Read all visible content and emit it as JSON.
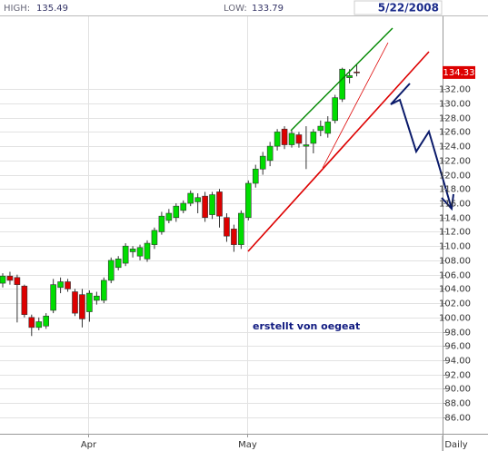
{
  "chart_data": {
    "type": "candlestick",
    "header": {
      "high_label": "HIGH:",
      "high": 135.49,
      "low_label": "LOW:",
      "low": 133.79,
      "date": "5/22/2008"
    },
    "annotation": "erstellt von oegeat",
    "period": "Daily",
    "categories": [
      null,
      null,
      null,
      null,
      null,
      null,
      null,
      null,
      null,
      null,
      null,
      null,
      "Apr",
      null,
      null,
      null,
      null,
      null,
      null,
      null,
      null,
      null,
      null,
      null,
      null,
      null,
      null,
      null,
      null,
      null,
      null,
      null,
      null,
      null,
      "May",
      null,
      null,
      null,
      null,
      null,
      null,
      null,
      null,
      null,
      null,
      null,
      null,
      null,
      null,
      null
    ],
    "series": [
      {
        "up_color": "#00dd00",
        "down_color": "#dd0000",
        "open": [
          104.8,
          105.8,
          105.6,
          104.4,
          100.0,
          98.6,
          98.8,
          101.0,
          104.2,
          105.0,
          103.6,
          103.2,
          100.8,
          102.4,
          102.4,
          105.2,
          107.0,
          107.6,
          109.2,
          108.6,
          108.2,
          110.2,
          112.0,
          113.6,
          114.0,
          115.0,
          116.0,
          116.2,
          117.0,
          114.4,
          117.6,
          114.0,
          112.4,
          110.2,
          114.0,
          118.8,
          120.8,
          122.0,
          124.0,
          126.4,
          124.2,
          125.6,
          124.0,
          124.4,
          126.2,
          125.8,
          127.6,
          130.6,
          133.6,
          134.4
        ],
        "high": [
          106.2,
          106.4,
          106.0,
          104.6,
          100.4,
          100.0,
          100.6,
          105.4,
          105.6,
          105.4,
          104.0,
          104.0,
          103.8,
          103.6,
          105.6,
          108.4,
          108.6,
          110.4,
          110.0,
          110.2,
          110.8,
          112.6,
          114.8,
          115.2,
          116.0,
          116.4,
          117.8,
          117.4,
          117.6,
          117.6,
          118.0,
          114.6,
          113.0,
          115.0,
          119.2,
          121.4,
          123.2,
          124.6,
          126.4,
          126.8,
          126.2,
          126.0,
          126.8,
          126.4,
          127.6,
          128.2,
          131.2,
          135.0,
          134.8,
          135.49
        ],
        "low": [
          104.2,
          104.6,
          99.3,
          100.0,
          97.4,
          98.2,
          98.4,
          100.6,
          103.4,
          103.6,
          100.2,
          98.6,
          99.4,
          101.8,
          102.0,
          104.8,
          106.6,
          107.2,
          108.4,
          108.0,
          107.8,
          109.6,
          111.6,
          113.2,
          113.4,
          114.6,
          115.6,
          114.6,
          113.4,
          113.8,
          112.6,
          110.6,
          109.2,
          109.6,
          113.6,
          118.2,
          120.0,
          121.2,
          123.4,
          123.6,
          123.8,
          123.8,
          120.8,
          123.0,
          125.4,
          125.2,
          127.2,
          130.2,
          132.8,
          133.79
        ],
        "close": [
          105.8,
          105.2,
          104.6,
          100.4,
          98.6,
          99.4,
          100.2,
          104.6,
          105.0,
          104.0,
          100.6,
          99.8,
          103.4,
          103.0,
          105.2,
          108.0,
          108.2,
          110.0,
          109.6,
          109.8,
          110.4,
          112.2,
          114.2,
          114.6,
          115.6,
          116.0,
          117.4,
          116.8,
          114.0,
          117.2,
          114.2,
          111.4,
          110.2,
          114.6,
          118.8,
          120.8,
          122.6,
          124.0,
          126.0,
          124.2,
          125.8,
          124.4,
          124.2,
          126.0,
          126.8,
          127.4,
          130.8,
          134.8,
          133.9,
          134.33
        ]
      }
    ],
    "ylim": [
      83.7,
      142.2
    ],
    "yticks": [
      {
        "value": 86,
        "label": "86.00"
      },
      {
        "value": 88,
        "label": "88.00"
      },
      {
        "value": 90,
        "label": "90.00"
      },
      {
        "value": 92,
        "label": "92.00"
      },
      {
        "value": 94,
        "label": "94.00"
      },
      {
        "value": 96,
        "label": "96.00"
      },
      {
        "value": 98,
        "label": "98.00"
      },
      {
        "value": 100,
        "label": "100.00"
      },
      {
        "value": 102,
        "label": "102.00"
      },
      {
        "value": 104,
        "label": "104.00"
      },
      {
        "value": 106,
        "label": "106.00"
      },
      {
        "value": 108,
        "label": "108.00"
      },
      {
        "value": 110,
        "label": "110.00"
      },
      {
        "value": 112,
        "label": "112.00"
      },
      {
        "value": 114,
        "label": "114.00"
      },
      {
        "value": 116,
        "label": "116.00"
      },
      {
        "value": 118,
        "label": "118.00"
      },
      {
        "value": 120,
        "label": "120.00"
      },
      {
        "value": 122,
        "label": "122.00"
      },
      {
        "value": 124,
        "label": "124.00"
      },
      {
        "value": 126,
        "label": "126.00"
      },
      {
        "value": 128,
        "label": "128.00"
      },
      {
        "value": 130,
        "label": "130.00"
      },
      {
        "value": 132,
        "label": "132.00"
      }
    ],
    "grid": true
  }
}
